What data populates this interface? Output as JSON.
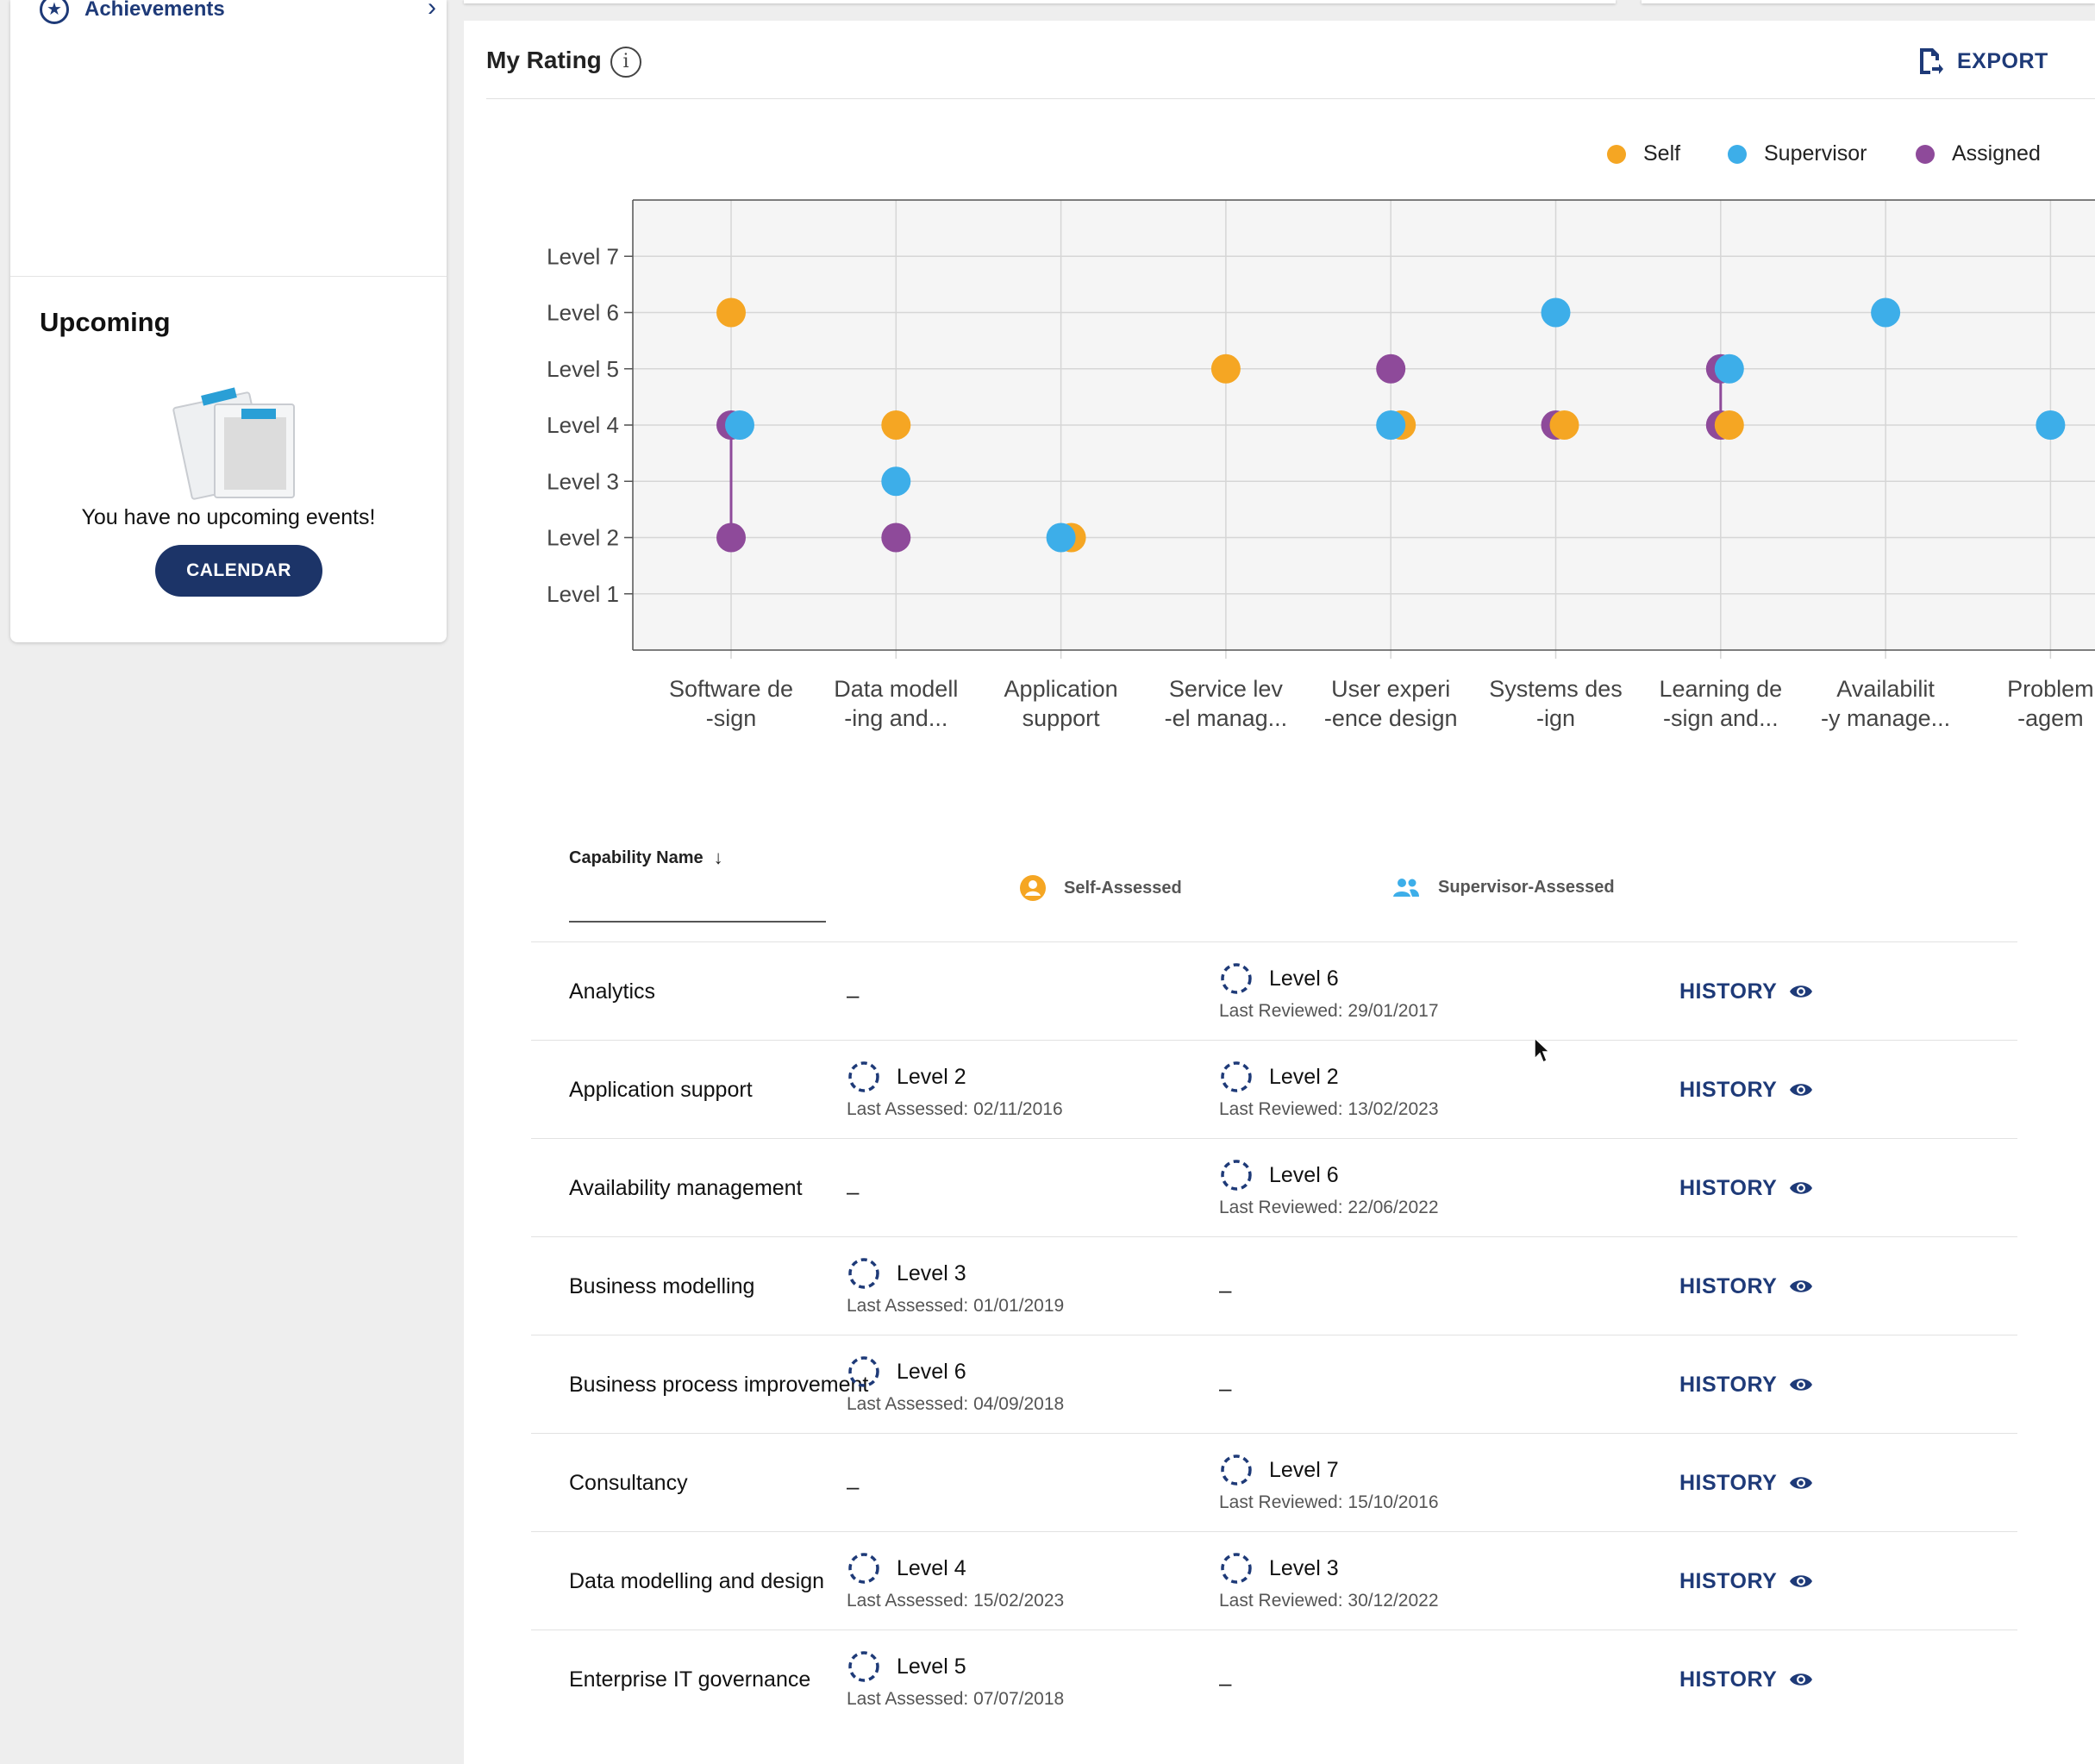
{
  "sidebar": {
    "achievements_label": "Achievements",
    "upcoming_title": "Upcoming",
    "no_events_text": "You have no upcoming events!",
    "calendar_button": "CALENDAR"
  },
  "rating": {
    "title": "My Rating",
    "export_label": "EXPORT",
    "legend": [
      {
        "label": "Self",
        "color": "#f5a623"
      },
      {
        "label": "Supervisor",
        "color": "#3daee9"
      },
      {
        "label": "Assigned",
        "color": "#8e4a9a"
      }
    ]
  },
  "chart_data": {
    "type": "scatter",
    "y_tick_labels": [
      "Level 1",
      "Level 2",
      "Level 3",
      "Level 4",
      "Level 5",
      "Level 6",
      "Level 7"
    ],
    "ylim": [
      0,
      8
    ],
    "categories": [
      [
        "Software de",
        "-sign"
      ],
      [
        "Data modell",
        "-ing and..."
      ],
      [
        "Application",
        "support"
      ],
      [
        "Service lev",
        "-el manag..."
      ],
      [
        "User experi",
        "-ence design"
      ],
      [
        "Systems des",
        "-ign"
      ],
      [
        "Learning de",
        "-sign and..."
      ],
      [
        "Availabilit",
        "-y manage..."
      ],
      [
        "Problem",
        "-agem"
      ]
    ],
    "series": [
      {
        "name": "Self",
        "color": "#f5a623",
        "values": [
          6,
          4,
          2,
          5,
          4,
          4,
          4,
          null,
          null
        ]
      },
      {
        "name": "Supervisor",
        "color": "#3daee9",
        "values": [
          4,
          3,
          2,
          null,
          4,
          6,
          5,
          6,
          4
        ]
      },
      {
        "name": "Assigned",
        "color": "#8e4a9a",
        "values": [
          [
            2,
            4
          ],
          2,
          null,
          null,
          5,
          4,
          [
            4,
            5
          ],
          null,
          null
        ]
      }
    ],
    "grid": true
  },
  "table": {
    "col_name": "Capability Name",
    "col_self": "Self-Assessed",
    "col_supervisor": "Supervisor-Assessed",
    "history_label": "HISTORY",
    "rows": [
      {
        "name": "Analytics",
        "self_level": "",
        "self_date": "",
        "sup_level": "Level 6",
        "sup_date": "Last Reviewed: 29/01/2017"
      },
      {
        "name": "Application support",
        "self_level": "Level 2",
        "self_date": "Last Assessed: 02/11/2016",
        "sup_level": "Level 2",
        "sup_date": "Last Reviewed: 13/02/2023"
      },
      {
        "name": "Availability management",
        "self_level": "",
        "self_date": "",
        "sup_level": "Level 6",
        "sup_date": "Last Reviewed: 22/06/2022"
      },
      {
        "name": "Business modelling",
        "self_level": "Level 3",
        "self_date": "Last Assessed: 01/01/2019",
        "sup_level": "",
        "sup_date": ""
      },
      {
        "name": "Business process improvement",
        "self_level": "Level 6",
        "self_date": "Last Assessed: 04/09/2018",
        "sup_level": "",
        "sup_date": ""
      },
      {
        "name": "Consultancy",
        "self_level": "",
        "self_date": "",
        "sup_level": "Level 7",
        "sup_date": "Last Reviewed: 15/10/2016"
      },
      {
        "name": "Data modelling and design",
        "self_level": "Level 4",
        "self_date": "Last Assessed: 15/02/2023",
        "sup_level": "Level 3",
        "sup_date": "Last Reviewed: 30/12/2022"
      },
      {
        "name": "Enterprise IT governance",
        "self_level": "Level 5",
        "self_date": "Last Assessed: 07/07/2018",
        "sup_level": "",
        "sup_date": ""
      }
    ],
    "empty_marker": "–"
  }
}
